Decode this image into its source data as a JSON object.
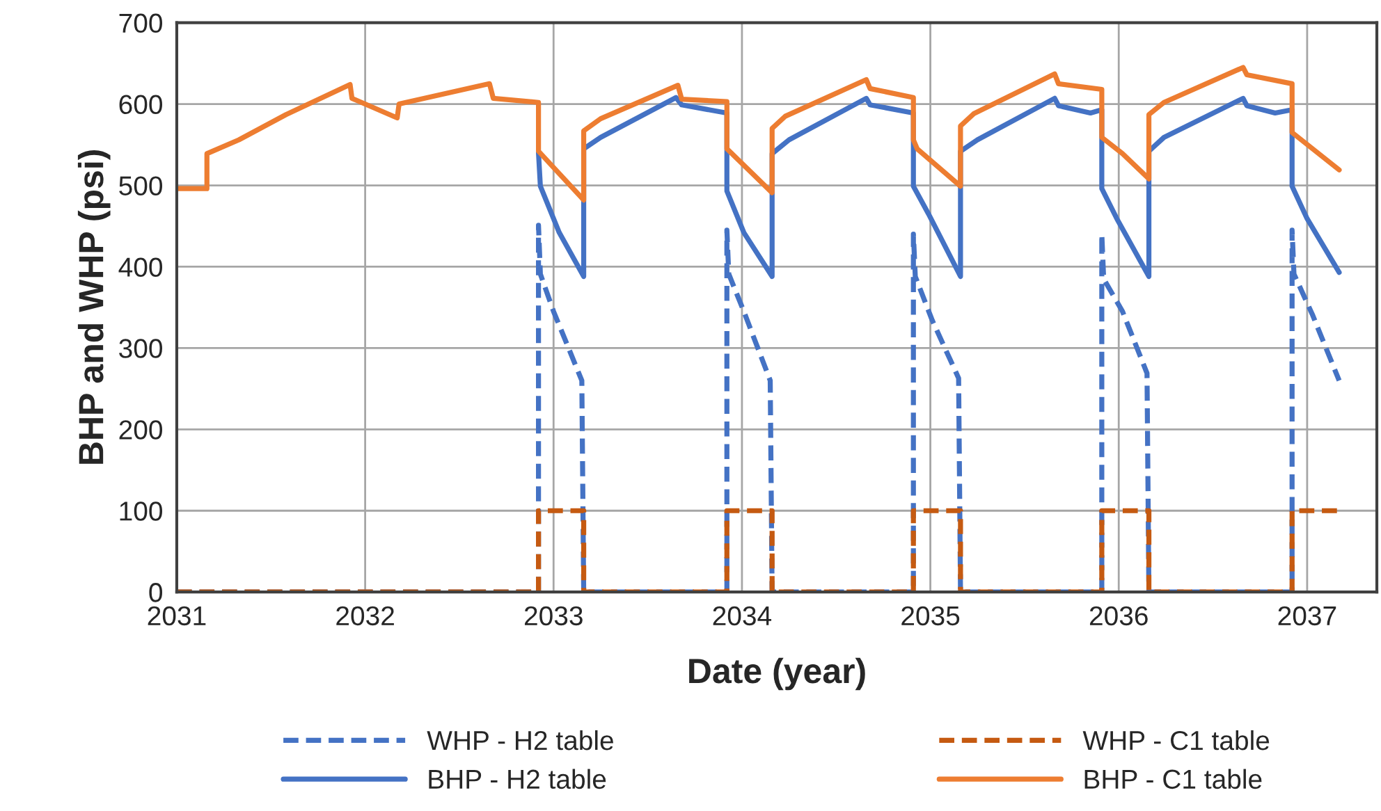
{
  "chart_data": {
    "type": "line",
    "xlabel": "Date (year)",
    "ylabel": "BHP and WHP (psi)",
    "xlim": [
      2031,
      2037.37
    ],
    "ylim": [
      0,
      700
    ],
    "xticks": [
      2031,
      2032,
      2033,
      2034,
      2035,
      2036,
      2037
    ],
    "yticks": [
      0,
      100,
      200,
      300,
      400,
      500,
      600,
      700
    ],
    "grid": true,
    "legend": "bottom",
    "series": [
      {
        "name": "WHP - H2 table",
        "color": "#4472c4",
        "line_style": "dashed",
        "x": [
          2031,
          2032.92,
          2032.92,
          2032.93,
          2033.0,
          2033.15,
          2033.16,
          2033.92,
          2033.92,
          2033.93,
          2034.01,
          2034.15,
          2034.16,
          2034.91,
          2034.91,
          2034.92,
          2035.01,
          2035.15,
          2035.16,
          2035.91,
          2035.91,
          2035.92,
          2036.02,
          2036.15,
          2036.16,
          2036.92,
          2036.92,
          2036.93,
          2037.03,
          2037.17
        ],
        "values": [
          0,
          0,
          451,
          391,
          345,
          260,
          0,
          0,
          445,
          391,
          345,
          260,
          0,
          0,
          440,
          388,
          334,
          263,
          0,
          0,
          440,
          385,
          345,
          269,
          0,
          0,
          445,
          391,
          340,
          260
        ]
      },
      {
        "name": "WHP - C1 table",
        "color": "#c55a11",
        "line_style": "dashed",
        "x": [
          2031,
          2032.92,
          2032.92,
          2033.16,
          2033.16,
          2033.92,
          2033.92,
          2034.16,
          2034.16,
          2034.91,
          2034.91,
          2035.16,
          2035.16,
          2035.91,
          2035.91,
          2036.16,
          2036.16,
          2036.92,
          2036.92,
          2037.17
        ],
        "values": [
          0,
          0,
          100,
          100,
          0,
          0,
          100,
          100,
          0,
          0,
          100,
          100,
          0,
          0,
          100,
          100,
          0,
          0,
          100,
          100
        ]
      },
      {
        "name": "BHP - H2 table",
        "color": "#4472c4",
        "line_style": "solid",
        "x": [
          2032.92,
          2032.93,
          2033.03,
          2033.16,
          2033.16,
          2033.25,
          2033.65,
          2033.68,
          2033.92,
          2033.92,
          2034.01,
          2034.16,
          2034.16,
          2034.25,
          2034.66,
          2034.68,
          2034.91,
          2034.91,
          2034.99,
          2035.16,
          2035.16,
          2035.25,
          2035.66,
          2035.68,
          2035.85,
          2035.91,
          2035.91,
          2035.99,
          2036.16,
          2036.16,
          2036.24,
          2036.66,
          2036.68,
          2036.83,
          2036.92,
          2036.92,
          2037.0,
          2037.17
        ],
        "values": [
          540,
          499,
          442,
          388,
          545,
          559,
          608,
          599,
          589,
          493,
          442,
          388,
          539,
          556,
          607,
          599,
          589,
          499,
          465,
          388,
          542,
          556,
          607,
          598,
          589,
          593,
          496,
          459,
          388,
          542,
          559,
          607,
          598,
          589,
          593,
          499,
          459,
          393
        ]
      },
      {
        "name": "BHP - C1 table",
        "color": "#ed7d31",
        "line_style": "solid",
        "x": [
          2031,
          2031.16,
          2031.16,
          2031.33,
          2031.58,
          2031.92,
          2031.93,
          2032.17,
          2032.18,
          2032.66,
          2032.68,
          2032.92,
          2032.92,
          2033.16,
          2033.16,
          2033.25,
          2033.66,
          2033.68,
          2033.92,
          2033.92,
          2034.16,
          2034.16,
          2034.23,
          2034.66,
          2034.68,
          2034.91,
          2034.91,
          2034.93,
          2035.16,
          2035.16,
          2035.23,
          2035.66,
          2035.68,
          2035.91,
          2035.91,
          2036.02,
          2036.16,
          2036.16,
          2036.24,
          2036.66,
          2036.68,
          2036.92,
          2036.92,
          2037.17
        ],
        "values": [
          496,
          496,
          539,
          556,
          587,
          624,
          607,
          583,
          600,
          625,
          607,
          602,
          542,
          482,
          567,
          582,
          623,
          606,
          603,
          545,
          491,
          570,
          585,
          630,
          619,
          608,
          556,
          545,
          499,
          573,
          588,
          637,
          625,
          618,
          559,
          539,
          508,
          587,
          602,
          645,
          636,
          625,
          565,
          519
        ]
      }
    ]
  }
}
